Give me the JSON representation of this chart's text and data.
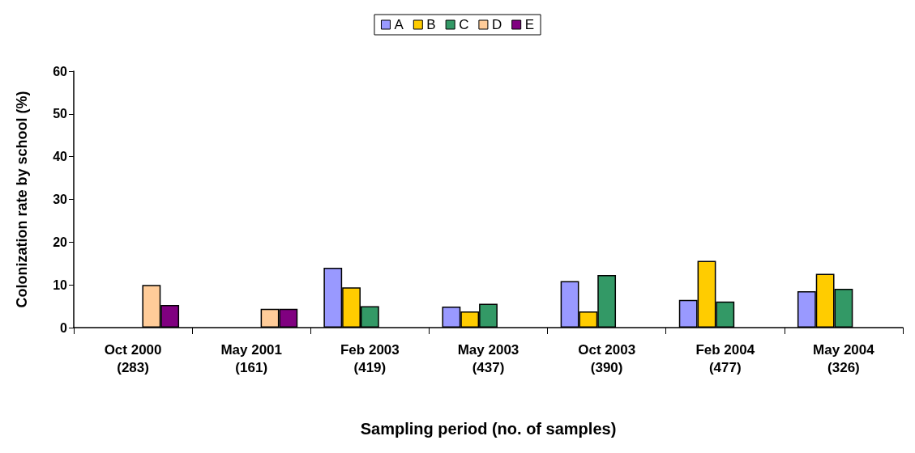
{
  "chart_data": {
    "type": "bar",
    "xlabel": "Sampling period (no. of samples)",
    "ylabel": "Colonization rate by school (%)",
    "categories": [
      "Oct 2000\n(283)",
      "May 2001\n(161)",
      "Feb 2003\n(419)",
      "May 2003\n(437)",
      "Oct 2003\n(390)",
      "Feb 2004\n(477)",
      "May 2004\n(326)"
    ],
    "series": [
      {
        "name": "A",
        "color": "#9999ff",
        "values": [
          null,
          null,
          14.0,
          4.9,
          10.9,
          6.5,
          8.5
        ]
      },
      {
        "name": "B",
        "color": "#ffcc00",
        "values": [
          null,
          null,
          9.4,
          3.8,
          3.8,
          15.6,
          12.6
        ]
      },
      {
        "name": "C",
        "color": "#339966",
        "values": [
          null,
          null,
          5.0,
          5.6,
          12.3,
          6.1,
          9.1
        ]
      },
      {
        "name": "D",
        "color": "#ffcc99",
        "values": [
          10.0,
          4.4,
          null,
          null,
          null,
          null,
          null
        ]
      },
      {
        "name": "E",
        "color": "#800080",
        "values": [
          5.3,
          4.4,
          null,
          null,
          null,
          null,
          null
        ]
      }
    ],
    "ylim": [
      0,
      60
    ],
    "yticks": [
      0,
      10,
      20,
      30,
      40,
      50,
      60
    ],
    "grid": false,
    "legend": "top"
  }
}
